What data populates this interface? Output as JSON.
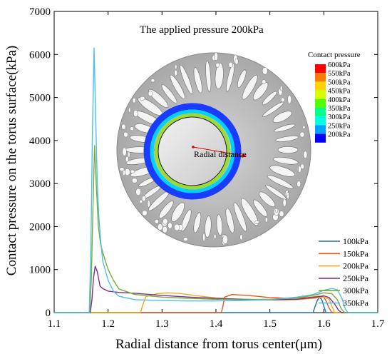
{
  "chart_data": {
    "type": "line",
    "title": "",
    "xlabel": "Radial distance from torus center(μm)",
    "ylabel": "Contact pressure on the torus surface(kPa)",
    "xlim": [
      1.1,
      1.7
    ],
    "ylim": [
      0,
      7000
    ],
    "xticks": [
      "1.1",
      "1.2",
      "1.3",
      "1.4",
      "1.5",
      "1.6",
      "1.7"
    ],
    "yticks": [
      "0",
      "1000",
      "2000",
      "3000",
      "4000",
      "5000",
      "6000",
      "7000"
    ],
    "legend_position": "bottom-right",
    "grid": false,
    "series": [
      {
        "name": "100kPa",
        "color": "#1f6fb0",
        "x": [
          1.1,
          1.58,
          1.584,
          1.588,
          1.592,
          1.596,
          1.6,
          1.604,
          1.7
        ],
        "y": [
          0,
          0,
          150,
          290,
          350,
          310,
          150,
          0,
          0
        ]
      },
      {
        "name": "150kPa",
        "color": "#e3571f",
        "x": [
          1.1,
          1.41,
          1.413,
          1.416,
          1.43,
          1.46,
          1.5,
          1.54,
          1.57,
          1.59,
          1.6,
          1.605,
          1.61,
          1.615,
          1.7
        ],
        "y": [
          0,
          0,
          150,
          360,
          420,
          400,
          350,
          330,
          350,
          380,
          360,
          250,
          100,
          0,
          0
        ]
      },
      {
        "name": "200kPa",
        "color": "#eea922",
        "x": [
          1.1,
          1.26,
          1.265,
          1.27,
          1.29,
          1.31,
          1.33,
          1.36,
          1.4,
          1.45,
          1.5,
          1.55,
          1.58,
          1.6,
          1.61,
          1.615,
          1.62,
          1.7
        ],
        "y": [
          0,
          0,
          200,
          370,
          440,
          460,
          450,
          400,
          340,
          300,
          290,
          300,
          330,
          360,
          310,
          150,
          0,
          0
        ]
      },
      {
        "name": "250kPa",
        "color": "#7b2d91",
        "x": [
          1.1,
          1.167,
          1.17,
          1.173,
          1.176,
          1.18,
          1.185,
          1.19,
          1.2,
          1.22,
          1.25,
          1.3,
          1.35,
          1.4,
          1.45,
          1.5,
          1.55,
          1.58,
          1.6,
          1.61,
          1.62,
          1.627,
          1.633,
          1.7
        ],
        "y": [
          0,
          0,
          300,
          800,
          1080,
          950,
          620,
          560,
          500,
          470,
          450,
          400,
          360,
          330,
          310,
          300,
          310,
          350,
          390,
          350,
          200,
          60,
          0,
          0
        ]
      },
      {
        "name": "300kPa",
        "color": "#77ac30",
        "x": [
          1.1,
          1.166,
          1.169,
          1.172,
          1.175,
          1.178,
          1.182,
          1.186,
          1.19,
          1.2,
          1.21,
          1.22,
          1.25,
          1.3,
          1.35,
          1.4,
          1.45,
          1.5,
          1.55,
          1.58,
          1.6,
          1.615,
          1.625,
          1.632,
          1.638,
          1.7
        ],
        "y": [
          0,
          0,
          800,
          2500,
          3880,
          3000,
          2000,
          1600,
          1400,
          1000,
          750,
          550,
          420,
          360,
          330,
          310,
          300,
          310,
          340,
          400,
          460,
          440,
          300,
          100,
          0,
          0
        ]
      },
      {
        "name": "350kPa",
        "color": "#4dbeee",
        "x": [
          1.1,
          1.165,
          1.168,
          1.171,
          1.174,
          1.177,
          1.18,
          1.183,
          1.186,
          1.19,
          1.2,
          1.21,
          1.22,
          1.25,
          1.3,
          1.35,
          1.4,
          1.45,
          1.5,
          1.55,
          1.58,
          1.6,
          1.615,
          1.625,
          1.633,
          1.64,
          1.645,
          1.7
        ],
        "y": [
          0,
          0,
          1500,
          4200,
          6150,
          4500,
          3000,
          2200,
          1700,
          1200,
          750,
          500,
          380,
          300,
          280,
          270,
          270,
          280,
          300,
          360,
          420,
          520,
          560,
          530,
          350,
          80,
          0,
          0
        ]
      }
    ]
  },
  "inset": {
    "title": "The applied pressure 200kPa",
    "radial_label": "Radial distance",
    "colorbar_title": "Contact pressure",
    "colorbar_labels": [
      "600kPa",
      "550kPa",
      "500kPa",
      "450kPa",
      "400kPa",
      "350kPa",
      "300kPa",
      "250kPa",
      "200kPa"
    ],
    "colorbar_colors": [
      "#ff0000",
      "#ff7a00",
      "#ffd400",
      "#d4ff00",
      "#52ff00",
      "#00ff8c",
      "#00ffe0",
      "#00a0ff",
      "#0000ff"
    ]
  }
}
